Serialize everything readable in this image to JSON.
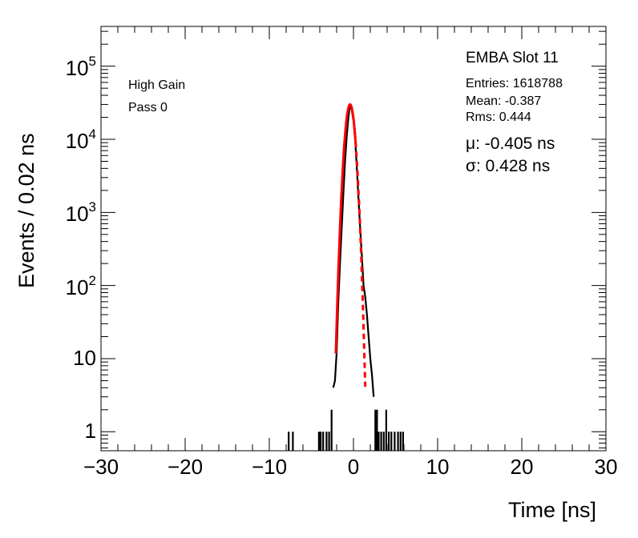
{
  "chart_data": {
    "type": "histogram",
    "title": "EMBA Slot 11",
    "xlabel": "Time [ns]",
    "ylabel": "Events / 0.02 ns",
    "xlim": [
      -30,
      30
    ],
    "ylim": [
      0.55,
      350000
    ],
    "yscale": "log",
    "x_ticks": [
      -30,
      -20,
      -10,
      0,
      10,
      20,
      30
    ],
    "x_tick_labels": [
      "−30",
      "−20",
      "−10",
      "0",
      "10",
      "20",
      "30"
    ],
    "y_ticks": [
      1,
      10,
      100,
      1000,
      10000,
      100000
    ],
    "y_tick_labels": [
      {
        "base": "",
        "exp": "",
        "plain": "1"
      },
      {
        "base": "",
        "exp": "",
        "plain": "10"
      },
      {
        "base": "10",
        "exp": "2",
        "plain": ""
      },
      {
        "base": "10",
        "exp": "3",
        "plain": ""
      },
      {
        "base": "10",
        "exp": "4",
        "plain": ""
      },
      {
        "base": "10",
        "exp": "5",
        "plain": ""
      }
    ],
    "annotations": {
      "gain": "High Gain",
      "pass": "Pass 0"
    },
    "stats": {
      "entries": "Entries: 1618788",
      "mean": "Mean: -0.387",
      "rms": "Rms: 0.444"
    },
    "fit_text": {
      "mu": "μ: -0.405 ns",
      "sigma": "σ: 0.428 ns"
    },
    "series": [
      {
        "color": "#000000",
        "style": "histogram",
        "points": [
          [
            -7.7,
            1
          ],
          [
            -7.2,
            1
          ],
          [
            -4.1,
            1
          ],
          [
            -3.9,
            1
          ],
          [
            -3.6,
            1
          ],
          [
            -3.2,
            1
          ],
          [
            -2.9,
            1
          ],
          [
            -2.6,
            2
          ],
          [
            -2.4,
            4
          ],
          [
            -2.2,
            5
          ],
          [
            -2.0,
            12
          ],
          [
            -1.8,
            60
          ],
          [
            -1.6,
            200
          ],
          [
            -1.4,
            600
          ],
          [
            -1.2,
            1800
          ],
          [
            -1.0,
            5000
          ],
          [
            -0.8,
            11000
          ],
          [
            -0.6,
            20000
          ],
          [
            -0.4,
            30000
          ],
          [
            -0.2,
            25000
          ],
          [
            0.0,
            18000
          ],
          [
            0.2,
            10000
          ],
          [
            0.4,
            4000
          ],
          [
            0.6,
            1500
          ],
          [
            0.8,
            600
          ],
          [
            1.0,
            250
          ],
          [
            1.2,
            100
          ],
          [
            1.4,
            70
          ],
          [
            1.6,
            40
          ],
          [
            1.8,
            20
          ],
          [
            2.0,
            10
          ],
          [
            2.2,
            6
          ],
          [
            2.4,
            3
          ],
          [
            2.6,
            2
          ],
          [
            2.8,
            2
          ],
          [
            3.0,
            1
          ],
          [
            3.3,
            1
          ],
          [
            3.6,
            1
          ],
          [
            3.9,
            2
          ],
          [
            4.2,
            1
          ],
          [
            4.5,
            1
          ],
          [
            4.9,
            1
          ],
          [
            5.3,
            1
          ],
          [
            5.6,
            1
          ],
          [
            5.9,
            1
          ]
        ]
      },
      {
        "color": "#ff0000",
        "style": "gaussian-fit",
        "mu": -0.405,
        "sigma": 0.428,
        "amplitude": 30000,
        "solid_range": [
          -2.1,
          0.25
        ],
        "dashed_range": [
          0.25,
          1.4
        ]
      }
    ]
  }
}
